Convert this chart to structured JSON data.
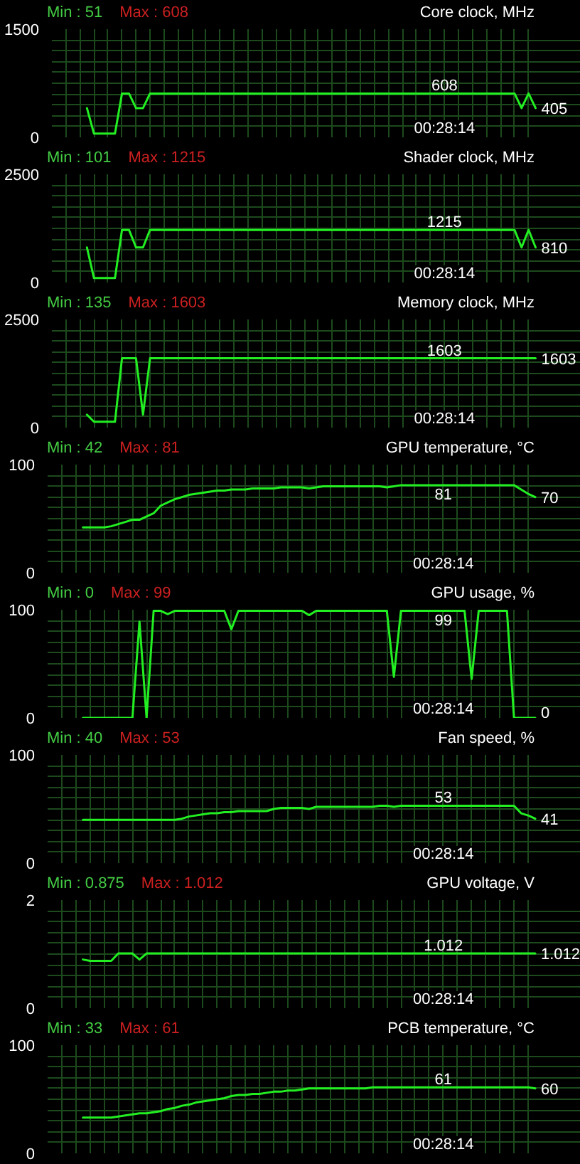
{
  "chart_data": [
    {
      "type": "line",
      "title": "Core clock, MHz",
      "annotations": [
        "Min : 51",
        "Max : 608",
        "00:28:14"
      ],
      "color": "#22ee22",
      "grid": true,
      "ylim": [
        0,
        1500
      ],
      "yticks": [
        0,
        {
          "value": 150,
          "label": null
        },
        {
          "value": 300,
          "label": null
        },
        {
          "value": 450,
          "label": null
        },
        {
          "value": 600,
          "label": null
        },
        {
          "value": 750,
          "label": null
        },
        {
          "value": 900,
          "label": null
        },
        {
          "value": 1050,
          "label": null
        },
        {
          "value": 1200,
          "label": null
        },
        {
          "value": 1350,
          "label": null
        },
        1500
      ],
      "categories": [
        null,
        null,
        null,
        null,
        null,
        null,
        null,
        null,
        null,
        null,
        null,
        null,
        null,
        null,
        null,
        null,
        null,
        null,
        null,
        null,
        null,
        null,
        null,
        null,
        null,
        null,
        null,
        null,
        null,
        null,
        null,
        null,
        null,
        null,
        null,
        null,
        null,
        null,
        null,
        null,
        null,
        null,
        null,
        null,
        null,
        null,
        null,
        null,
        null,
        null,
        null,
        null,
        null,
        null,
        null,
        null,
        null,
        null,
        null,
        null,
        null,
        null,
        null,
        null,
        null,
        null,
        null,
        null,
        null,
        null
      ],
      "values": [
        null,
        null,
        null,
        null,
        null,
        405,
        51,
        51,
        51,
        51,
        608,
        608,
        405,
        405,
        608,
        608,
        608,
        608,
        608,
        608,
        608,
        608,
        608,
        608,
        608,
        608,
        608,
        608,
        608,
        608,
        608,
        608,
        608,
        608,
        608,
        608,
        608,
        608,
        608,
        608,
        608,
        608,
        608,
        608,
        608,
        608,
        608,
        608,
        608,
        608,
        608,
        608,
        608,
        608,
        608,
        608,
        608,
        608,
        608,
        608,
        608,
        608,
        608,
        608,
        608,
        608,
        608,
        405,
        608,
        405
      ],
      "value_labels": [
        null,
        null,
        null,
        null,
        null,
        null,
        null,
        null,
        null,
        null,
        null,
        null,
        null,
        null,
        null,
        null,
        null,
        null,
        null,
        null,
        null,
        null,
        null,
        null,
        null,
        null,
        null,
        null,
        null,
        null,
        null,
        null,
        null,
        null,
        null,
        null,
        null,
        null,
        null,
        null,
        null,
        null,
        null,
        null,
        null,
        null,
        null,
        null,
        null,
        null,
        null,
        null,
        null,
        null,
        null,
        null,
        "608",
        null,
        null,
        null,
        null,
        null,
        null,
        null,
        null,
        null,
        null,
        null,
        null,
        "405"
      ]
    },
    {
      "type": "line",
      "title": "Shader clock, MHz",
      "annotations": [
        "Min : 101",
        "Max : 1215",
        "00:28:14"
      ],
      "color": "#22ee22",
      "grid": true,
      "ylim": [
        0,
        2500
      ],
      "yticks": [
        0,
        {
          "value": 250,
          "label": null
        },
        {
          "value": 500,
          "label": null
        },
        {
          "value": 750,
          "label": null
        },
        {
          "value": 1000,
          "label": null
        },
        {
          "value": 1250,
          "label": null
        },
        {
          "value": 1500,
          "label": null
        },
        {
          "value": 1750,
          "label": null
        },
        {
          "value": 2000,
          "label": null
        },
        {
          "value": 2250,
          "label": null
        },
        2500
      ],
      "categories": [
        null,
        null,
        null,
        null,
        null,
        null,
        null,
        null,
        null,
        null,
        null,
        null,
        null,
        null,
        null,
        null,
        null,
        null,
        null,
        null,
        null,
        null,
        null,
        null,
        null,
        null,
        null,
        null,
        null,
        null,
        null,
        null,
        null,
        null,
        null,
        null,
        null,
        null,
        null,
        null,
        null,
        null,
        null,
        null,
        null,
        null,
        null,
        null,
        null,
        null,
        null,
        null,
        null,
        null,
        null,
        null,
        null,
        null,
        null,
        null,
        null,
        null,
        null,
        null,
        null,
        null,
        null,
        null,
        null,
        null
      ],
      "values": [
        null,
        null,
        null,
        null,
        null,
        810,
        101,
        101,
        101,
        101,
        1215,
        1215,
        810,
        810,
        1215,
        1215,
        1215,
        1215,
        1215,
        1215,
        1215,
        1215,
        1215,
        1215,
        1215,
        1215,
        1215,
        1215,
        1215,
        1215,
        1215,
        1215,
        1215,
        1215,
        1215,
        1215,
        1215,
        1215,
        1215,
        1215,
        1215,
        1215,
        1215,
        1215,
        1215,
        1215,
        1215,
        1215,
        1215,
        1215,
        1215,
        1215,
        1215,
        1215,
        1215,
        1215,
        1215,
        1215,
        1215,
        1215,
        1215,
        1215,
        1215,
        1215,
        1215,
        1215,
        1215,
        810,
        1215,
        810
      ],
      "value_labels": [
        null,
        null,
        null,
        null,
        null,
        null,
        null,
        null,
        null,
        null,
        null,
        null,
        null,
        null,
        null,
        null,
        null,
        null,
        null,
        null,
        null,
        null,
        null,
        null,
        null,
        null,
        null,
        null,
        null,
        null,
        null,
        null,
        null,
        null,
        null,
        null,
        null,
        null,
        null,
        null,
        null,
        null,
        null,
        null,
        null,
        null,
        null,
        null,
        null,
        null,
        null,
        null,
        null,
        null,
        null,
        null,
        "1215",
        null,
        null,
        null,
        null,
        null,
        null,
        null,
        null,
        null,
        null,
        null,
        null,
        "810"
      ]
    },
    {
      "type": "line",
      "title": "Memory clock, MHz",
      "annotations": [
        "Min : 135",
        "Max : 1603",
        "00:28:14"
      ],
      "color": "#22ee22",
      "grid": true,
      "ylim": [
        0,
        2500
      ],
      "yticks": [
        0,
        {
          "value": 250,
          "label": null
        },
        {
          "value": 500,
          "label": null
        },
        {
          "value": 750,
          "label": null
        },
        {
          "value": 1000,
          "label": null
        },
        {
          "value": 1250,
          "label": null
        },
        {
          "value": 1500,
          "label": null
        },
        {
          "value": 1750,
          "label": null
        },
        {
          "value": 2000,
          "label": null
        },
        {
          "value": 2250,
          "label": null
        },
        2500
      ],
      "categories": [
        null,
        null,
        null,
        null,
        null,
        null,
        null,
        null,
        null,
        null,
        null,
        null,
        null,
        null,
        null,
        null,
        null,
        null,
        null,
        null,
        null,
        null,
        null,
        null,
        null,
        null,
        null,
        null,
        null,
        null,
        null,
        null,
        null,
        null,
        null,
        null,
        null,
        null,
        null,
        null,
        null,
        null,
        null,
        null,
        null,
        null,
        null,
        null,
        null,
        null,
        null,
        null,
        null,
        null,
        null,
        null,
        null,
        null,
        null,
        null,
        null,
        null,
        null,
        null,
        null,
        null,
        null,
        null,
        null,
        null
      ],
      "values": [
        null,
        null,
        null,
        null,
        null,
        300,
        135,
        135,
        135,
        135,
        1603,
        1603,
        1603,
        300,
        1603,
        1603,
        1603,
        1603,
        1603,
        1603,
        1603,
        1603,
        1603,
        1603,
        1603,
        1603,
        1603,
        1603,
        1603,
        1603,
        1603,
        1603,
        1603,
        1603,
        1603,
        1603,
        1603,
        1603,
        1603,
        1603,
        1603,
        1603,
        1603,
        1603,
        1603,
        1603,
        1603,
        1603,
        1603,
        1603,
        1603,
        1603,
        1603,
        1603,
        1603,
        1603,
        1603,
        1603,
        1603,
        1603,
        1603,
        1603,
        1603,
        1603,
        1603,
        1603,
        1603,
        1603,
        1603,
        1603
      ],
      "value_labels": [
        null,
        null,
        null,
        null,
        null,
        null,
        null,
        null,
        null,
        null,
        null,
        null,
        null,
        null,
        null,
        null,
        null,
        null,
        null,
        null,
        null,
        null,
        null,
        null,
        null,
        null,
        null,
        null,
        null,
        null,
        null,
        null,
        null,
        null,
        null,
        null,
        null,
        null,
        null,
        null,
        null,
        null,
        null,
        null,
        null,
        null,
        null,
        null,
        null,
        null,
        null,
        null,
        null,
        null,
        null,
        null,
        "1603",
        null,
        null,
        null,
        null,
        null,
        null,
        null,
        null,
        null,
        null,
        null,
        null,
        "1603"
      ]
    },
    {
      "type": "line",
      "title": "GPU temperature, °C",
      "annotations": [
        "Min : 42",
        "Max : 81",
        "00:28:14"
      ],
      "color": "#22ee22",
      "grid": true,
      "ylim": [
        0,
        100
      ],
      "yticks": [
        0,
        {
          "value": 10,
          "label": null
        },
        {
          "value": 20,
          "label": null
        },
        {
          "value": 30,
          "label": null
        },
        {
          "value": 40,
          "label": null
        },
        {
          "value": 50,
          "label": null
        },
        {
          "value": 60,
          "label": null
        },
        {
          "value": 70,
          "label": null
        },
        {
          "value": 80,
          "label": null
        },
        {
          "value": 90,
          "label": null
        },
        100
      ],
      "categories": [
        null,
        null,
        null,
        null,
        null,
        null,
        null,
        null,
        null,
        null,
        null,
        null,
        null,
        null,
        null,
        null,
        null,
        null,
        null,
        null,
        null,
        null,
        null,
        null,
        null,
        null,
        null,
        null,
        null,
        null,
        null,
        null,
        null,
        null,
        null,
        null,
        null,
        null,
        null,
        null,
        null,
        null,
        null,
        null,
        null,
        null,
        null,
        null,
        null,
        null,
        null,
        null,
        null,
        null,
        null,
        null,
        null,
        null,
        null,
        null,
        null,
        null,
        null,
        null,
        null,
        null,
        null,
        null,
        null,
        null
      ],
      "values": [
        null,
        null,
        null,
        null,
        null,
        42,
        42,
        42,
        42,
        43,
        45,
        47,
        49,
        49,
        52,
        55,
        62,
        65,
        68,
        70,
        72,
        73,
        74,
        75,
        76,
        76,
        77,
        77,
        77,
        78,
        78,
        78,
        78,
        79,
        79,
        79,
        79,
        78,
        79,
        80,
        80,
        80,
        80,
        80,
        80,
        80,
        80,
        80,
        79,
        80,
        81,
        81,
        81,
        81,
        81,
        81,
        81,
        81,
        81,
        81,
        81,
        81,
        81,
        81,
        81,
        81,
        81,
        77,
        73,
        70
      ],
      "value_labels": [
        null,
        null,
        null,
        null,
        null,
        null,
        null,
        null,
        null,
        null,
        null,
        null,
        null,
        null,
        null,
        null,
        null,
        null,
        null,
        null,
        null,
        null,
        null,
        null,
        null,
        null,
        null,
        null,
        null,
        null,
        null,
        null,
        null,
        null,
        null,
        null,
        null,
        null,
        null,
        null,
        null,
        null,
        null,
        null,
        null,
        null,
        null,
        null,
        null,
        null,
        null,
        null,
        null,
        null,
        null,
        null,
        "81",
        null,
        null,
        null,
        null,
        null,
        null,
        null,
        null,
        null,
        null,
        null,
        null,
        "70"
      ]
    },
    {
      "type": "line",
      "title": "GPU usage, %",
      "annotations": [
        "Min : 0",
        "Max : 99",
        "00:28:14"
      ],
      "color": "#22ee22",
      "grid": true,
      "ylim": [
        0,
        100
      ],
      "yticks": [
        0,
        {
          "value": 10,
          "label": null
        },
        {
          "value": 20,
          "label": null
        },
        {
          "value": 30,
          "label": null
        },
        {
          "value": 40,
          "label": null
        },
        {
          "value": 50,
          "label": null
        },
        {
          "value": 60,
          "label": null
        },
        {
          "value": 70,
          "label": null
        },
        {
          "value": 80,
          "label": null
        },
        {
          "value": 90,
          "label": null
        },
        100
      ],
      "categories": [
        null,
        null,
        null,
        null,
        null,
        null,
        null,
        null,
        null,
        null,
        null,
        null,
        null,
        null,
        null,
        null,
        null,
        null,
        null,
        null,
        null,
        null,
        null,
        null,
        null,
        null,
        null,
        null,
        null,
        null,
        null,
        null,
        null,
        null,
        null,
        null,
        null,
        null,
        null,
        null,
        null,
        null,
        null,
        null,
        null,
        null,
        null,
        null,
        null,
        null,
        null,
        null,
        null,
        null,
        null,
        null,
        null,
        null,
        null,
        null,
        null,
        null,
        null,
        null,
        null,
        null,
        null,
        null,
        null,
        null
      ],
      "values": [
        null,
        null,
        null,
        null,
        null,
        0,
        0,
        0,
        0,
        0,
        0,
        0,
        0,
        89,
        0,
        99,
        99,
        96,
        99,
        99,
        99,
        99,
        99,
        99,
        99,
        99,
        82,
        99,
        99,
        99,
        99,
        99,
        99,
        99,
        99,
        99,
        99,
        95,
        99,
        99,
        99,
        99,
        99,
        99,
        99,
        99,
        99,
        99,
        99,
        38,
        99,
        99,
        99,
        99,
        99,
        99,
        99,
        99,
        99,
        99,
        36,
        99,
        99,
        99,
        99,
        99,
        0,
        0,
        0,
        0
      ],
      "value_labels": [
        null,
        null,
        null,
        null,
        null,
        null,
        null,
        null,
        null,
        null,
        null,
        null,
        null,
        null,
        null,
        null,
        null,
        null,
        null,
        null,
        null,
        null,
        null,
        null,
        null,
        null,
        null,
        null,
        null,
        null,
        null,
        null,
        null,
        null,
        null,
        null,
        null,
        null,
        null,
        null,
        null,
        null,
        null,
        null,
        null,
        null,
        null,
        null,
        null,
        null,
        null,
        null,
        null,
        null,
        null,
        null,
        "99",
        null,
        null,
        null,
        null,
        null,
        null,
        null,
        null,
        null,
        null,
        null,
        null,
        "0"
      ]
    },
    {
      "type": "line",
      "title": "Fan speed, %",
      "annotations": [
        "Min : 40",
        "Max : 53",
        "00:28:14"
      ],
      "color": "#22ee22",
      "grid": true,
      "ylim": [
        0,
        100
      ],
      "yticks": [
        0,
        {
          "value": 10,
          "label": null
        },
        {
          "value": 20,
          "label": null
        },
        {
          "value": 30,
          "label": null
        },
        {
          "value": 40,
          "label": null
        },
        {
          "value": 50,
          "label": null
        },
        {
          "value": 60,
          "label": null
        },
        {
          "value": 70,
          "label": null
        },
        {
          "value": 80,
          "label": null
        },
        {
          "value": 90,
          "label": null
        },
        100
      ],
      "categories": [
        null,
        null,
        null,
        null,
        null,
        null,
        null,
        null,
        null,
        null,
        null,
        null,
        null,
        null,
        null,
        null,
        null,
        null,
        null,
        null,
        null,
        null,
        null,
        null,
        null,
        null,
        null,
        null,
        null,
        null,
        null,
        null,
        null,
        null,
        null,
        null,
        null,
        null,
        null,
        null,
        null,
        null,
        null,
        null,
        null,
        null,
        null,
        null,
        null,
        null,
        null,
        null,
        null,
        null,
        null,
        null,
        null,
        null,
        null,
        null,
        null,
        null,
        null,
        null,
        null,
        null,
        null,
        null,
        null,
        null
      ],
      "values": [
        null,
        null,
        null,
        null,
        null,
        40,
        40,
        40,
        40,
        40,
        40,
        40,
        40,
        40,
        40,
        40,
        40,
        40,
        40,
        41,
        43,
        44,
        45,
        46,
        46,
        47,
        47,
        48,
        48,
        48,
        48,
        48,
        50,
        51,
        51,
        51,
        51,
        50,
        52,
        52,
        52,
        52,
        52,
        52,
        52,
        52,
        52,
        53,
        53,
        52,
        53,
        53,
        53,
        53,
        53,
        53,
        53,
        53,
        53,
        53,
        53,
        53,
        53,
        53,
        53,
        53,
        53,
        46,
        44,
        41
      ],
      "value_labels": [
        null,
        null,
        null,
        null,
        null,
        null,
        null,
        null,
        null,
        null,
        null,
        null,
        null,
        null,
        null,
        null,
        null,
        null,
        null,
        null,
        null,
        null,
        null,
        null,
        null,
        null,
        null,
        null,
        null,
        null,
        null,
        null,
        null,
        null,
        null,
        null,
        null,
        null,
        null,
        null,
        null,
        null,
        null,
        null,
        null,
        null,
        null,
        null,
        null,
        null,
        null,
        null,
        null,
        null,
        null,
        null,
        "53",
        null,
        null,
        null,
        null,
        null,
        null,
        null,
        null,
        null,
        null,
        null,
        null,
        "41"
      ]
    },
    {
      "type": "line",
      "title": "GPU voltage, V",
      "annotations": [
        "Min : 0.875",
        "Max : 1.012",
        "00:28:14"
      ],
      "color": "#22ee22",
      "grid": true,
      "ylim": [
        0,
        2
      ],
      "yticks": [
        0,
        {
          "value": 0.2,
          "label": null
        },
        {
          "value": 0.4,
          "label": null
        },
        {
          "value": 0.6,
          "label": null
        },
        {
          "value": 0.8,
          "label": null
        },
        {
          "value": 1,
          "label": null
        },
        {
          "value": 1.2,
          "label": null
        },
        {
          "value": 1.4,
          "label": null
        },
        {
          "value": 1.6,
          "label": null
        },
        {
          "value": 1.8,
          "label": null
        },
        2
      ],
      "categories": [
        null,
        null,
        null,
        null,
        null,
        null,
        null,
        null,
        null,
        null,
        null,
        null,
        null,
        null,
        null,
        null,
        null,
        null,
        null,
        null,
        null,
        null,
        null,
        null,
        null,
        null,
        null,
        null,
        null,
        null,
        null,
        null,
        null,
        null,
        null,
        null,
        null,
        null,
        null,
        null,
        null,
        null,
        null,
        null,
        null,
        null,
        null,
        null,
        null,
        null,
        null,
        null,
        null,
        null,
        null,
        null,
        null,
        null,
        null,
        null,
        null,
        null,
        null,
        null,
        null,
        null,
        null,
        null,
        null,
        null
      ],
      "values": [
        null,
        null,
        null,
        null,
        null,
        0.9,
        0.875,
        0.875,
        0.875,
        0.875,
        1.012,
        1.012,
        1.012,
        0.9,
        1.012,
        1.012,
        1.012,
        1.012,
        1.012,
        1.012,
        1.012,
        1.012,
        1.012,
        1.012,
        1.012,
        1.012,
        1.012,
        1.012,
        1.012,
        1.012,
        1.012,
        1.012,
        1.012,
        1.012,
        1.012,
        1.012,
        1.012,
        1.012,
        1.012,
        1.012,
        1.012,
        1.012,
        1.012,
        1.012,
        1.012,
        1.012,
        1.012,
        1.012,
        1.012,
        1.012,
        1.012,
        1.012,
        1.012,
        1.012,
        1.012,
        1.012,
        1.012,
        1.012,
        1.012,
        1.012,
        1.012,
        1.012,
        1.012,
        1.012,
        1.012,
        1.012,
        1.012,
        1.012,
        1.012,
        1.012
      ],
      "value_labels": [
        null,
        null,
        null,
        null,
        null,
        null,
        null,
        null,
        null,
        null,
        null,
        null,
        null,
        null,
        null,
        null,
        null,
        null,
        null,
        null,
        null,
        null,
        null,
        null,
        null,
        null,
        null,
        null,
        null,
        null,
        null,
        null,
        null,
        null,
        null,
        null,
        null,
        null,
        null,
        null,
        null,
        null,
        null,
        null,
        null,
        null,
        null,
        null,
        null,
        null,
        null,
        null,
        null,
        null,
        null,
        null,
        "1.012",
        null,
        null,
        null,
        null,
        null,
        null,
        null,
        null,
        null,
        null,
        null,
        null,
        "1.012"
      ]
    },
    {
      "type": "line",
      "title": "PCB temperature, °C",
      "annotations": [
        "Min : 33",
        "Max : 61",
        "00:28:14"
      ],
      "color": "#22ee22",
      "grid": true,
      "ylim": [
        0,
        100
      ],
      "yticks": [
        0,
        {
          "value": 10,
          "label": null
        },
        {
          "value": 20,
          "label": null
        },
        {
          "value": 30,
          "label": null
        },
        {
          "value": 40,
          "label": null
        },
        {
          "value": 50,
          "label": null
        },
        {
          "value": 60,
          "label": null
        },
        {
          "value": 70,
          "label": null
        },
        {
          "value": 80,
          "label": null
        },
        {
          "value": 90,
          "label": null
        },
        100
      ],
      "categories": [
        null,
        null,
        null,
        null,
        null,
        null,
        null,
        null,
        null,
        null,
        null,
        null,
        null,
        null,
        null,
        null,
        null,
        null,
        null,
        null,
        null,
        null,
        null,
        null,
        null,
        null,
        null,
        null,
        null,
        null,
        null,
        null,
        null,
        null,
        null,
        null,
        null,
        null,
        null,
        null,
        null,
        null,
        null,
        null,
        null,
        null,
        null,
        null,
        null,
        null,
        null,
        null,
        null,
        null,
        null,
        null,
        null,
        null,
        null,
        null,
        null,
        null,
        null,
        null,
        null,
        null,
        null,
        null,
        null,
        null
      ],
      "values": [
        null,
        null,
        null,
        null,
        null,
        33,
        33,
        33,
        33,
        33,
        34,
        35,
        36,
        37,
        37,
        38,
        39,
        41,
        42,
        44,
        45,
        47,
        48,
        49,
        50,
        51,
        53,
        54,
        54,
        55,
        55,
        56,
        57,
        57,
        58,
        58,
        59,
        60,
        60,
        60,
        60,
        60,
        60,
        60,
        60,
        60,
        61,
        61,
        61,
        61,
        61,
        61,
        61,
        61,
        61,
        61,
        61,
        61,
        61,
        61,
        61,
        61,
        61,
        61,
        61,
        61,
        61,
        61,
        61,
        60
      ],
      "value_labels": [
        null,
        null,
        null,
        null,
        null,
        null,
        null,
        null,
        null,
        null,
        null,
        null,
        null,
        null,
        null,
        null,
        null,
        null,
        null,
        null,
        null,
        null,
        null,
        null,
        null,
        null,
        null,
        null,
        null,
        null,
        null,
        null,
        null,
        null,
        null,
        null,
        null,
        null,
        null,
        null,
        null,
        null,
        null,
        null,
        null,
        null,
        null,
        null,
        null,
        null,
        null,
        null,
        null,
        null,
        null,
        null,
        "61",
        null,
        null,
        null,
        null,
        null,
        null,
        null,
        null,
        null,
        null,
        null,
        null,
        "60"
      ]
    }
  ]
}
